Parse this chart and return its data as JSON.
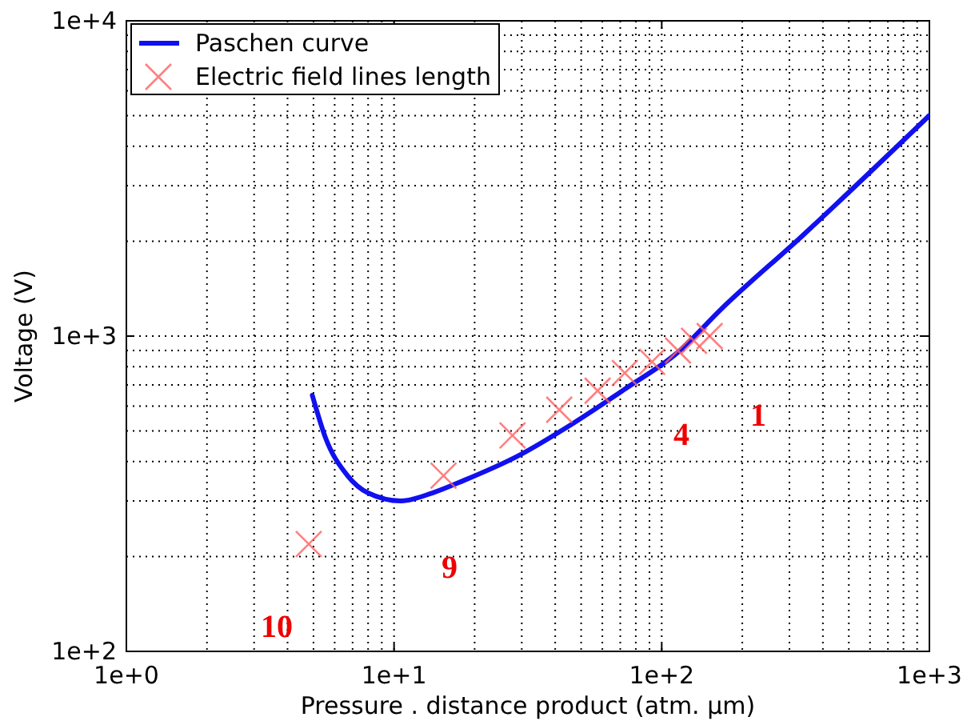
{
  "chart_data": {
    "type": "line",
    "xlabel": "Pressure . distance product (atm. µm)",
    "ylabel": "Voltage (V)",
    "log": "xy",
    "grid": true,
    "legend": "top left",
    "xlim": [
      1,
      1000
    ],
    "ylim": [
      100,
      10000
    ],
    "xticks": [
      {
        "value": 1,
        "label": "1e+0"
      },
      {
        "value": 10,
        "label": "1e+1"
      },
      {
        "value": 100,
        "label": "1e+2"
      },
      {
        "value": 1000,
        "label": "1e+3"
      }
    ],
    "yticks": [
      {
        "value": 100,
        "label": "1e+2"
      },
      {
        "value": 1000,
        "label": "1e+3"
      },
      {
        "value": 10000,
        "label": "1e+4"
      }
    ],
    "series": [
      {
        "name": "Paschen curve",
        "color": "#1010f0",
        "marker": "none",
        "line_style": "solid",
        "x": [
          4.95,
          5.53,
          6.7,
          8.0,
          10.6,
          13.9,
          18.3,
          28.9,
          46.2,
          72.8,
          115,
          167,
          332,
          1000
        ],
        "values": [
          649,
          479,
          361,
          318,
          300,
          318,
          349,
          416,
          526,
          679,
          889,
          1219,
          2065,
          5010
        ]
      },
      {
        "name": "Electric field lines length",
        "type": "scatter",
        "color": "#ff6060",
        "marker": "cross",
        "x": [
          4.8,
          15.3,
          27.7,
          41.4,
          57.6,
          72.8,
          92,
          115,
          132,
          151
        ],
        "values": [
          219,
          361,
          484,
          584,
          671,
          764,
          829,
          900,
          966,
          1000
        ]
      }
    ],
    "annotations": [
      "10",
      "9",
      "4",
      "1"
    ]
  }
}
